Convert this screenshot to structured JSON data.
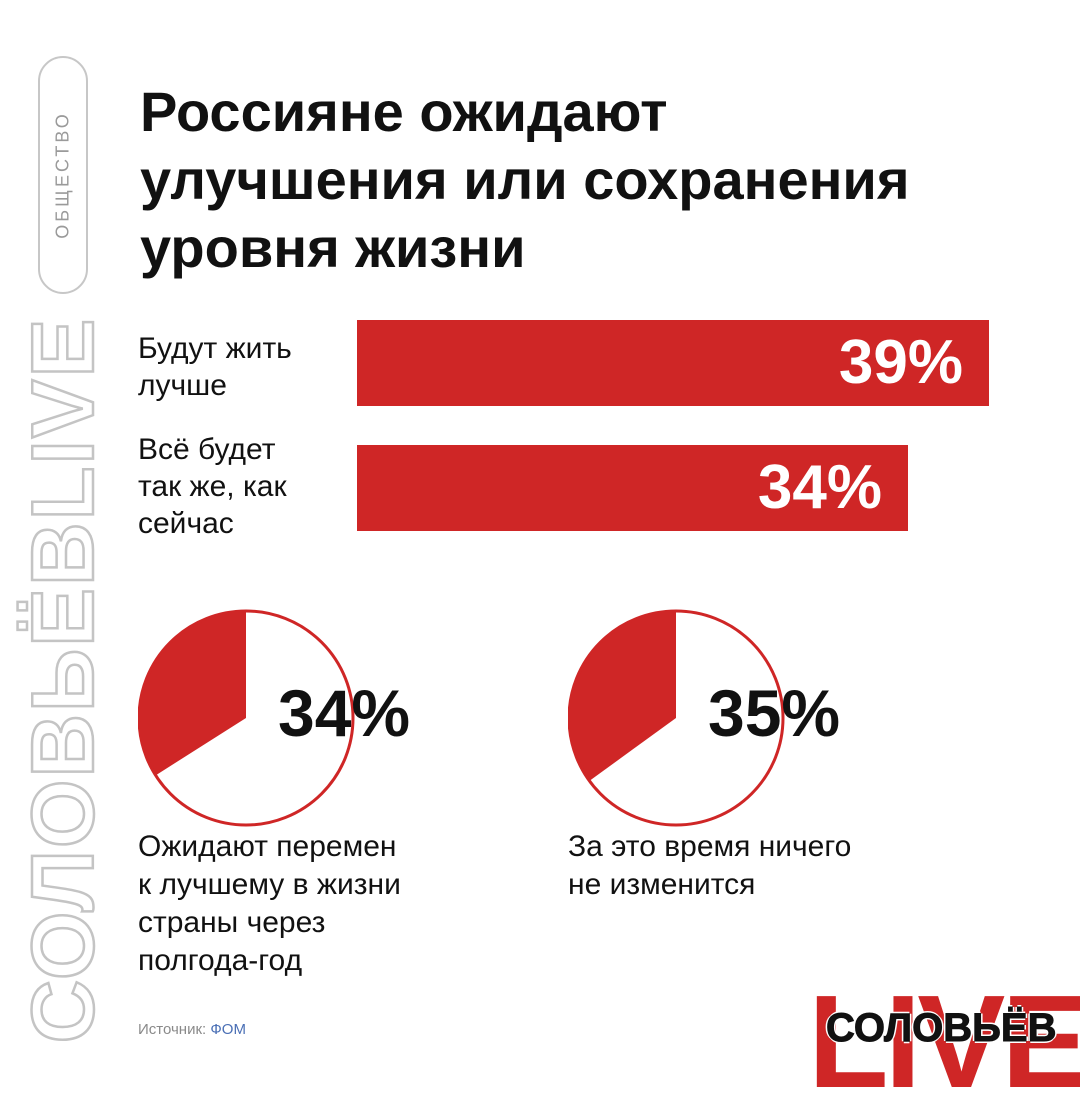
{
  "side": {
    "tag": "ОБЩЕСТВО",
    "brand": "СОЛОВЬЁВLIVE"
  },
  "title_lines": [
    "Россияне ожидают",
    "улучшения или сохранения",
    "уровня жизни"
  ],
  "colors": {
    "accent": "#cf2626",
    "text": "#111111",
    "muted": "#9a9a9a"
  },
  "chart_data": [
    {
      "type": "bar",
      "orientation": "horizontal",
      "categories": [
        [
          "Будут жить",
          "лучше"
        ],
        [
          "Всё будет",
          "так же, как",
          "сейчас"
        ]
      ],
      "values": [
        39,
        34
      ],
      "value_labels": [
        "39%",
        "34%"
      ],
      "unit": "%",
      "grid": false,
      "legend": "none"
    },
    {
      "type": "pie",
      "slices": [
        {
          "value": 34,
          "color": "#cf2626"
        },
        {
          "value": 66,
          "color": "#ffffff"
        }
      ],
      "value_label": "34%",
      "caption": [
        "Ожидают перемен",
        "к лучшему в жизни",
        "страны через",
        "полгода-год"
      ]
    },
    {
      "type": "pie",
      "slices": [
        {
          "value": 35,
          "color": "#cf2626"
        },
        {
          "value": 65,
          "color": "#ffffff"
        }
      ],
      "value_label": "35%",
      "caption": [
        "За это время ничего",
        "не изменится"
      ]
    }
  ],
  "source": {
    "label": "Источник:",
    "name": "ФОМ"
  },
  "logo": {
    "live": "LIVE",
    "name": "СОЛОВЬЁВ"
  }
}
